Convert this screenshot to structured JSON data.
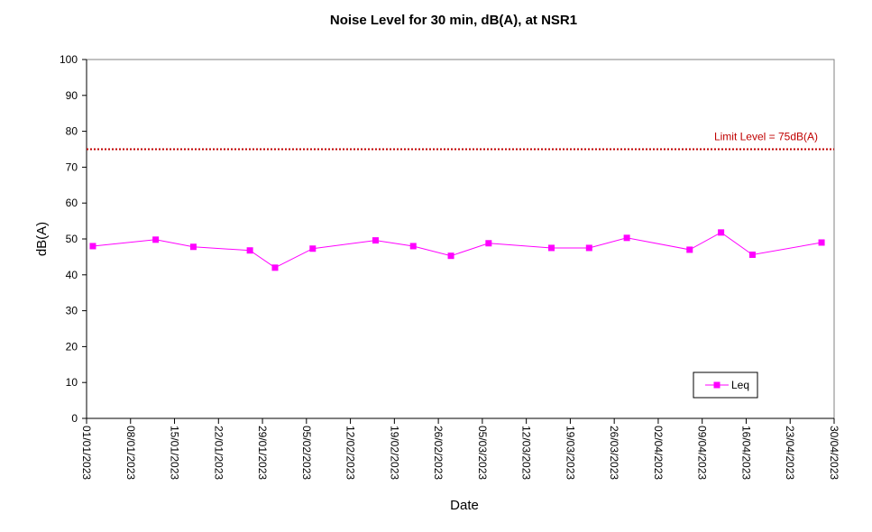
{
  "chart_data": {
    "type": "line",
    "title": "Noise Level for 30 min, dB(A), at NSR1",
    "xlabel": "Date",
    "ylabel": "dB(A)",
    "ylim": [
      0,
      100
    ],
    "yticks": [
      0,
      10,
      20,
      30,
      40,
      50,
      60,
      70,
      80,
      90,
      100
    ],
    "xlim": [
      "01/01/2023",
      "30/04/2023"
    ],
    "xticks": [
      "01/01/2023",
      "08/01/2023",
      "15/01/2023",
      "22/01/2023",
      "29/01/2023",
      "05/02/2023",
      "12/02/2023",
      "19/02/2023",
      "26/02/2023",
      "05/03/2023",
      "12/03/2023",
      "19/03/2023",
      "26/03/2023",
      "02/04/2023",
      "09/04/2023",
      "16/04/2023",
      "23/04/2023",
      "30/04/2023"
    ],
    "grid": false,
    "legend_position": "bottom-right",
    "series": [
      {
        "name": "Leq",
        "color": "#ff00ff",
        "marker": "square",
        "points": [
          {
            "x": "02/01/2023",
            "y": 48.0
          },
          {
            "x": "12/01/2023",
            "y": 49.8
          },
          {
            "x": "18/01/2023",
            "y": 47.8
          },
          {
            "x": "27/01/2023",
            "y": 46.8
          },
          {
            "x": "31/01/2023",
            "y": 42.0
          },
          {
            "x": "06/02/2023",
            "y": 47.3
          },
          {
            "x": "16/02/2023",
            "y": 49.6
          },
          {
            "x": "22/02/2023",
            "y": 48.0
          },
          {
            "x": "28/02/2023",
            "y": 45.3
          },
          {
            "x": "06/03/2023",
            "y": 48.8
          },
          {
            "x": "16/03/2023",
            "y": 47.5
          },
          {
            "x": "22/03/2023",
            "y": 47.5
          },
          {
            "x": "28/03/2023",
            "y": 50.3
          },
          {
            "x": "07/04/2023",
            "y": 47.0
          },
          {
            "x": "12/04/2023",
            "y": 51.8
          },
          {
            "x": "17/04/2023",
            "y": 45.6
          },
          {
            "x": "28/04/2023",
            "y": 49.0
          }
        ]
      }
    ],
    "limit_line": {
      "value": 75,
      "label": "Limit Level  = 75dB(A)",
      "color": "#c00000",
      "style": "dotted"
    }
  }
}
